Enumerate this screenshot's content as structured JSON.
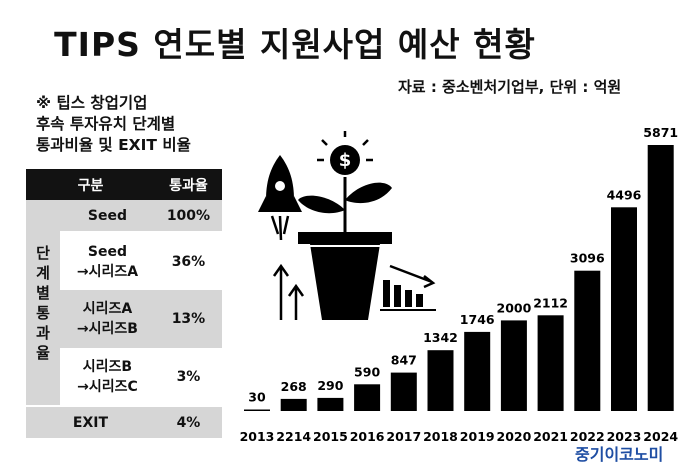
{
  "title": "TIPS 연도별 지원사업 예산 현황",
  "source": "자료 : 중소벤처기업부, 단위 : 억원",
  "note_lines": [
    "※ 팁스 창업기업",
    "후속 투자유치 단계별",
    "통과비율 및 EXIT 비율"
  ],
  "brand": "중기이코노미",
  "table": {
    "headers": [
      "구분",
      "통과율"
    ],
    "group_label": "단계별통과율",
    "rows": [
      {
        "stage": "Seed",
        "rate": "100%"
      },
      {
        "stage": "Seed\n→시리즈A",
        "rate": "36%"
      },
      {
        "stage": "시리즈A\n→시리즈B",
        "rate": "13%"
      },
      {
        "stage": "시리즈B\n→시리즈C",
        "rate": "3%"
      },
      {
        "stage": "EXIT",
        "rate": "4%"
      }
    ]
  },
  "chart_data": {
    "type": "bar",
    "categories": [
      "2013",
      "2214",
      "2015",
      "2016",
      "2017",
      "2018",
      "2019",
      "2020",
      "2021",
      "2022",
      "2023",
      "2024"
    ],
    "values": [
      30,
      268,
      290,
      590,
      847,
      1342,
      1746,
      2000,
      2112,
      3096,
      4496,
      5871
    ],
    "value_labels": [
      "30",
      "268",
      "290",
      "590",
      "847",
      "1342",
      "1746",
      "2000",
      "2112",
      "3096",
      "4496",
      "5871"
    ],
    "title": "",
    "xlabel": "",
    "ylabel": "",
    "ylim": [
      0,
      5871
    ],
    "grid": false,
    "bar_color": "#000000"
  },
  "colors": {
    "bars": "#000000",
    "table_dark": "#121212",
    "table_light": "#d6d6d6",
    "brand": "#1f4ea3"
  },
  "illustration": {
    "icons": [
      "rocket-icon",
      "plant-pot-icon",
      "dollar-coin-icon",
      "up-arrows-icon",
      "declining-bars-icon"
    ]
  }
}
